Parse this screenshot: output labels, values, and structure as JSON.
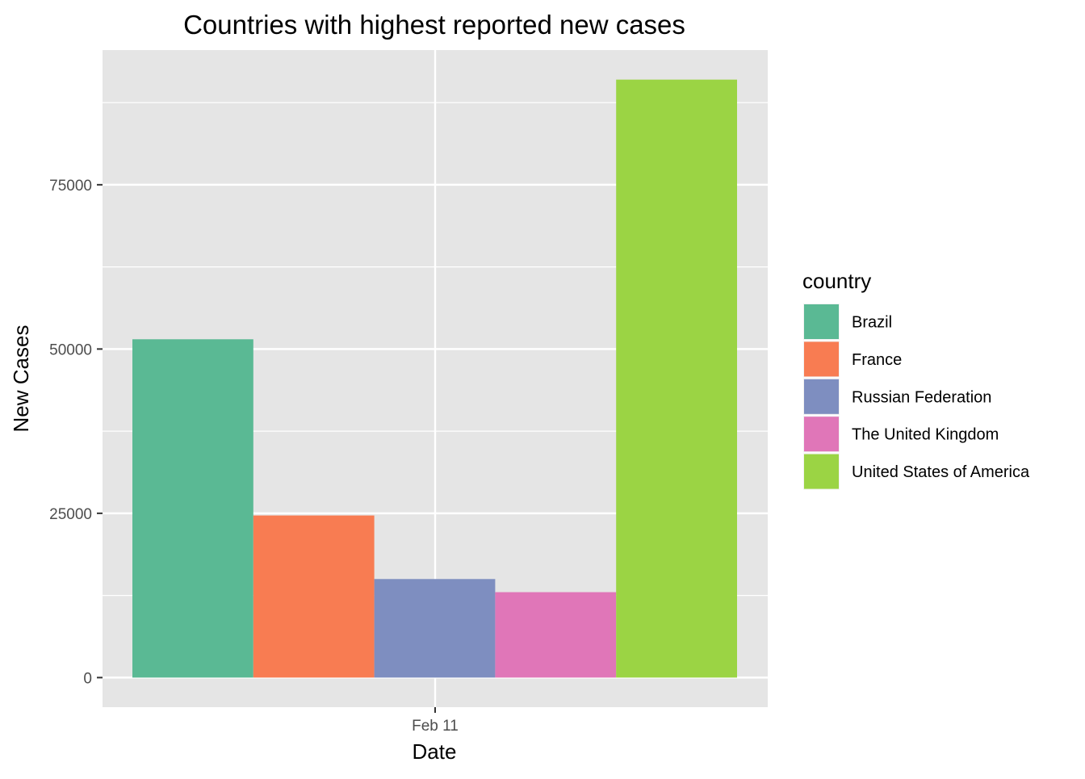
{
  "chart_data": {
    "type": "bar",
    "title": "Countries with highest reported new cases",
    "xlabel": "Date",
    "ylabel": "New Cases",
    "categories": [
      "Feb 11"
    ],
    "series": [
      {
        "name": "Brazil",
        "values": [
          51486
        ],
        "color": "#5ab994"
      },
      {
        "name": "France",
        "values": [
          24668
        ],
        "color": "#f87c52"
      },
      {
        "name": "Russian Federation",
        "values": [
          15000
        ],
        "color": "#7e8ec0"
      },
      {
        "name": "The United Kingdom",
        "values": [
          13000
        ],
        "color": "#e076b8"
      },
      {
        "name": "United States of America",
        "values": [
          91000
        ],
        "color": "#9bd444"
      }
    ],
    "yticks": [
      0,
      25000,
      50000,
      75000
    ],
    "ytick_labels": [
      "0",
      "25000",
      "50000",
      "75000"
    ],
    "ylim": [
      -4500,
      95500
    ],
    "grid": true,
    "legend": {
      "title": "country",
      "position": "right"
    },
    "panel_color": "#e5e5e5"
  }
}
